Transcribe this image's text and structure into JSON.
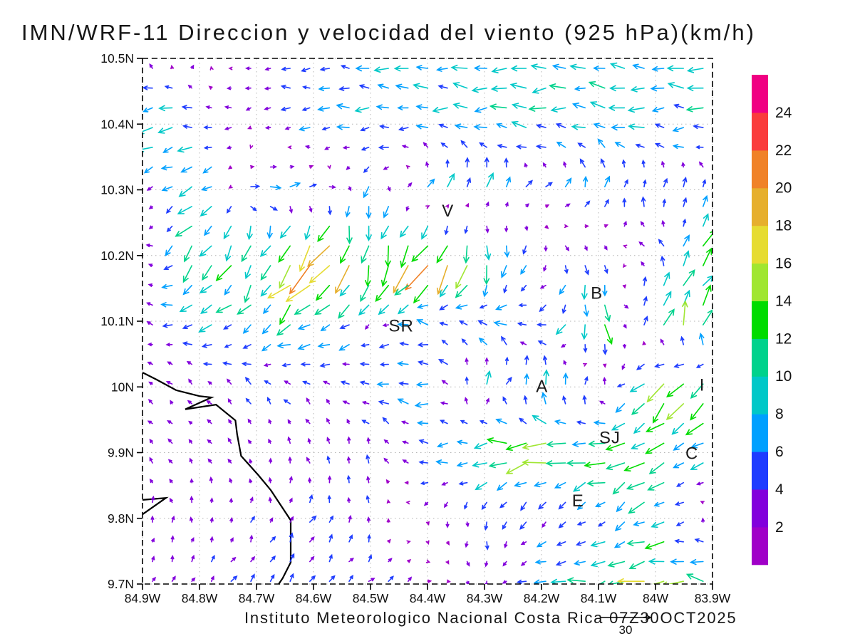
{
  "title": "IMN/WRF-11 Direccion y velocidad del viento (925 hPa)(km/h)",
  "footer": "Instituto Meteorologico Nacional Costa Rica 07Z30OCT2025",
  "chart_data": {
    "type": "vector_field",
    "units": "km/h",
    "x_axis": {
      "tick_labels": [
        "84.9W",
        "84.8W",
        "84.7W",
        "84.6W",
        "84.5W",
        "84.4W",
        "84.3W",
        "84.2W",
        "84.1W",
        "84W",
        "83.9W"
      ],
      "tick_lon_w": [
        84.9,
        84.8,
        84.7,
        84.6,
        84.5,
        84.4,
        84.3,
        84.2,
        84.1,
        84.0,
        83.9
      ]
    },
    "y_axis": {
      "tick_labels": [
        "10.5N",
        "10.4N",
        "10.3N",
        "10.2N",
        "10.1N",
        "10N",
        "9.9N",
        "9.8N",
        "9.7N"
      ],
      "tick_lat_n": [
        10.5,
        10.4,
        10.3,
        10.2,
        10.1,
        10.0,
        9.9,
        9.8,
        9.7
      ]
    },
    "grid": {
      "step_deg": 0.1,
      "style": "dotted"
    },
    "colorbar": {
      "tick_labels": [
        "24",
        "22",
        "20",
        "18",
        "16",
        "14",
        "12",
        "10",
        "8",
        "6",
        "4",
        "2"
      ],
      "levels": [
        2,
        4,
        6,
        8,
        10,
        12,
        14,
        16,
        18,
        20,
        22,
        24
      ],
      "colors_low_to_high": [
        "#a000c8",
        "#8200dc",
        "#1e3cff",
        "#00a0ff",
        "#00c8c8",
        "#00d28c",
        "#00dc00",
        "#a0e632",
        "#e6dc32",
        "#e6af2d",
        "#f08228",
        "#fa3c3c",
        "#f00082"
      ]
    },
    "reference_vector": {
      "speed_kmh": 30,
      "label": "30"
    },
    "stations": [
      {
        "label": "V",
        "lon_w": 84.364,
        "lat_n": 10.268
      },
      {
        "label": "B",
        "lon_w": 84.103,
        "lat_n": 10.143
      },
      {
        "label": "SR",
        "lon_w": 84.446,
        "lat_n": 10.093
      },
      {
        "label": "A",
        "lon_w": 84.199,
        "lat_n": 10.001
      },
      {
        "label": "SJ",
        "lon_w": 84.08,
        "lat_n": 9.923
      },
      {
        "label": "C",
        "lon_w": 83.936,
        "lat_n": 9.899
      },
      {
        "label": "E",
        "lon_w": 84.136,
        "lat_n": 9.827
      },
      {
        "label": "I",
        "lon_w": 83.918,
        "lat_n": 10.003
      }
    ],
    "coastline": [
      [
        84.9,
        10.022
      ],
      [
        84.875,
        10.011
      ],
      [
        84.841,
        9.995
      ],
      [
        84.8,
        9.986
      ],
      [
        84.779,
        9.984
      ],
      [
        84.825,
        9.966
      ],
      [
        84.771,
        9.973
      ],
      [
        84.737,
        9.949
      ],
      [
        84.734,
        9.928
      ],
      [
        84.727,
        9.895
      ],
      [
        84.697,
        9.866
      ],
      [
        84.675,
        9.843
      ],
      [
        84.64,
        9.797
      ],
      [
        84.64,
        9.733
      ],
      [
        84.654,
        9.709
      ],
      [
        84.661,
        9.7
      ]
    ],
    "coastline_inlet": [
      [
        84.9,
        9.828
      ],
      [
        84.859,
        9.831
      ],
      [
        84.9,
        9.806
      ]
    ],
    "wind_grid": {
      "lon_w": [
        84.9,
        84.8,
        84.7,
        84.6,
        84.5,
        84.4,
        84.3,
        84.2,
        84.1,
        84.0,
        83.9
      ],
      "lat_n": [
        10.5,
        10.4,
        10.3,
        10.2,
        10.1,
        10.0,
        9.9,
        9.8,
        9.7
      ],
      "uv_kmh": [
        [
          [
            0,
            3
          ],
          [
            2,
            2
          ],
          [
            -3,
            -1
          ],
          [
            -5,
            0
          ],
          [
            -6,
            0
          ],
          [
            -8,
            0
          ],
          [
            -8,
            0
          ],
          [
            -8,
            0
          ],
          [
            -8,
            0
          ],
          [
            -8,
            0
          ],
          [
            -8,
            0
          ]
        ],
        [
          [
            -12,
            -3
          ],
          [
            -6,
            0
          ],
          [
            -2,
            -1
          ],
          [
            -6,
            0
          ],
          [
            -7,
            0
          ],
          [
            -7,
            0
          ],
          [
            -8,
            0
          ],
          [
            -8,
            0
          ],
          [
            -8,
            1
          ],
          [
            -8,
            0
          ],
          [
            -8,
            0
          ]
        ],
        [
          [
            0,
            -2
          ],
          [
            -10,
            -4
          ],
          [
            6,
            1
          ],
          [
            5,
            1
          ],
          [
            -1,
            -6
          ],
          [
            4,
            6
          ],
          [
            2,
            8
          ],
          [
            3,
            3
          ],
          [
            2,
            7
          ],
          [
            1,
            5
          ],
          [
            3,
            4
          ]
        ],
        [
          [
            -2,
            2
          ],
          [
            -7,
            -10
          ],
          [
            -5,
            -12
          ],
          [
            -12,
            -14
          ],
          [
            -4,
            -16
          ],
          [
            -10,
            -16
          ],
          [
            -2,
            -14
          ],
          [
            0,
            -4
          ],
          [
            2,
            -4
          ],
          [
            -4,
            3
          ],
          [
            8,
            10
          ]
        ],
        [
          [
            -2,
            1
          ],
          [
            -8,
            -1
          ],
          [
            -6,
            -4
          ],
          [
            -8,
            -6
          ],
          [
            -3,
            -3
          ],
          [
            -6,
            2
          ],
          [
            -6,
            3
          ],
          [
            -7,
            -1
          ],
          [
            0,
            -14
          ],
          [
            4,
            12
          ],
          [
            5,
            13
          ]
        ],
        [
          [
            -2,
            2
          ],
          [
            -2,
            2
          ],
          [
            -3,
            3
          ],
          [
            -3,
            3
          ],
          [
            -6,
            1
          ],
          [
            -7,
            1
          ],
          [
            4,
            6
          ],
          [
            1,
            8
          ],
          [
            2,
            6
          ],
          [
            -10,
            -12
          ],
          [
            -9,
            -7
          ]
        ],
        [
          [
            -2,
            2
          ],
          [
            -2,
            2
          ],
          [
            -1,
            2
          ],
          [
            -1,
            3
          ],
          [
            0,
            4
          ],
          [
            -6,
            0
          ],
          [
            -10,
            -2
          ],
          [
            -14,
            -2
          ],
          [
            -12,
            -3
          ],
          [
            -8,
            -6
          ],
          [
            -8,
            -2
          ]
        ],
        [
          [
            0,
            3
          ],
          [
            0,
            3
          ],
          [
            1,
            3
          ],
          [
            2,
            4
          ],
          [
            0,
            3
          ],
          [
            0,
            -2
          ],
          [
            0,
            -4
          ],
          [
            -3,
            -4
          ],
          [
            -4,
            -3
          ],
          [
            -8,
            -5
          ],
          [
            2,
            3
          ]
        ],
        [
          [
            1,
            2
          ],
          [
            2,
            3
          ],
          [
            3,
            4
          ],
          [
            3,
            4
          ],
          [
            3,
            3
          ],
          [
            2,
            1
          ],
          [
            0,
            -3
          ],
          [
            -6,
            -1
          ],
          [
            -10,
            -2
          ],
          [
            -14,
            -3
          ],
          [
            -10,
            3
          ]
        ]
      ]
    }
  }
}
